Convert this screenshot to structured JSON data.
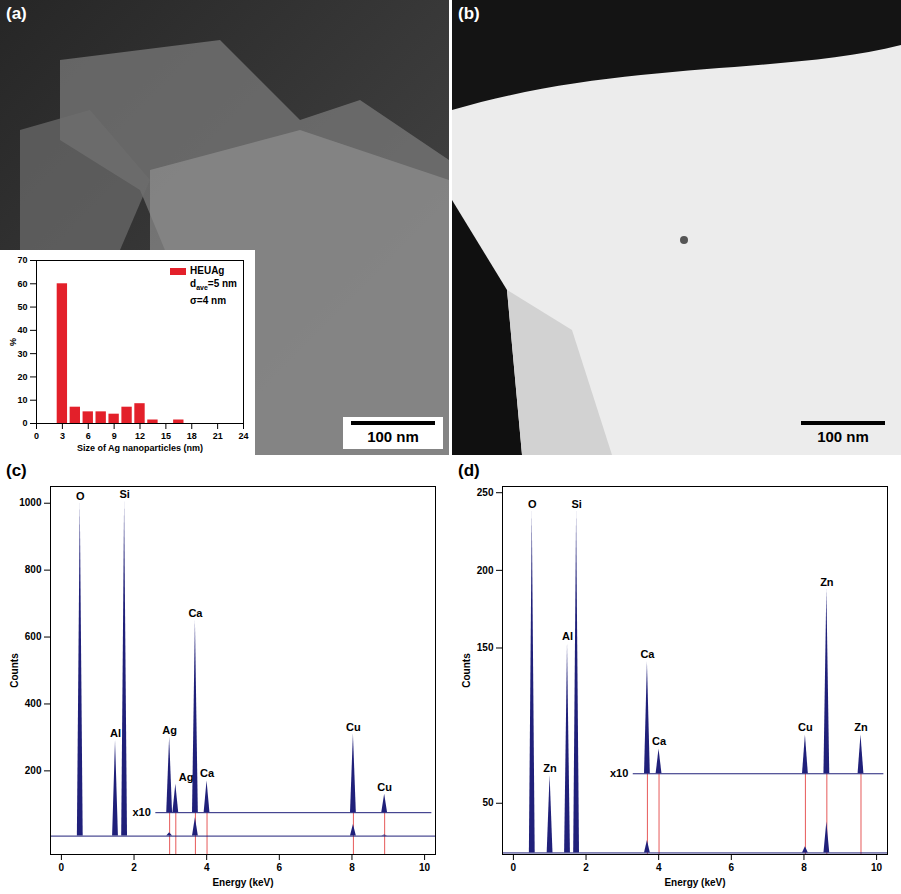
{
  "images": [
    {
      "panel": "(a)",
      "scale_bar": "100 nm"
    },
    {
      "panel": "(b)",
      "scale_bar": "100 nm"
    }
  ],
  "chart_data": [
    {
      "panel": "(a)",
      "type": "bar",
      "x": [
        3,
        4.5,
        6,
        7.5,
        9,
        10.5,
        12,
        13.5,
        16.5
      ],
      "series": [
        {
          "name": "HEUAg",
          "color": "#e3202a",
          "values": [
            60,
            7,
            5,
            5,
            4,
            7,
            8.5,
            1.5,
            1.5
          ]
        }
      ],
      "annotations": [
        {
          "text": "d",
          "sub": "ave",
          "after": "=5 nm"
        },
        {
          "text": "σ=4 nm"
        }
      ],
      "x_label": "Size of Ag nanoparticles (nm)",
      "y_label": "%",
      "xlim": [
        0,
        24
      ],
      "xticks": [
        0,
        3,
        6,
        9,
        12,
        15,
        18,
        21,
        24
      ],
      "ylim": [
        0,
        70
      ],
      "yticks": [
        0,
        10,
        20,
        30,
        40,
        50,
        60,
        70
      ],
      "legend": "top-right"
    },
    {
      "panel": "(c)",
      "type": "area",
      "color": "#20207a",
      "x_label": "Energy (keV)",
      "y_label": "Counts",
      "xlim": [
        -0.3,
        10.3
      ],
      "xticks": [
        0,
        2,
        4,
        6,
        8,
        10
      ],
      "ylim": [
        -50,
        1050
      ],
      "yticks": [
        200,
        400,
        600,
        800,
        1000
      ],
      "peaks": {
        "baseline": 5,
        "energies": [
          0.52,
          1.49,
          1.74,
          2.98,
          3.69,
          8.04,
          8.9
        ],
        "values": [
          1000,
          290,
          1005,
          15,
          60,
          40,
          8
        ],
        "labels": [
          "O",
          "Al",
          "Si",
          null,
          null,
          null,
          null
        ]
      },
      "inset": {
        "label": "x10",
        "xrange": [
          2.6,
          10.2
        ],
        "baseline": 75,
        "energies": [
          2.98,
          3.15,
          3.69,
          4.01,
          8.04,
          8.9
        ],
        "values": [
          300,
          160,
          650,
          170,
          310,
          130
        ],
        "labels": [
          "Ag",
          "Ag",
          "Ca",
          "Ca",
          "Cu",
          "Cu"
        ]
      }
    },
    {
      "panel": "(d)",
      "type": "area",
      "color": "#20207a",
      "x_label": "Energy (keV)",
      "y_label": "Counts",
      "xlim": [
        -0.3,
        10.3
      ],
      "xticks": [
        0,
        2,
        4,
        6,
        8,
        10
      ],
      "ylim": [
        17,
        254
      ],
      "yticks": [
        50,
        150,
        200,
        250
      ],
      "peaks": {
        "baseline": 18,
        "energies": [
          0.52,
          1.01,
          1.49,
          1.74,
          3.69,
          8.04,
          8.63
        ],
        "values": [
          238,
          68,
          153,
          238,
          26,
          22,
          38
        ],
        "labels": [
          "O",
          "Zn",
          "Al",
          "Si",
          null,
          null,
          null
        ]
      },
      "inset": {
        "label": "x10",
        "xrange": [
          3.3,
          10.2
        ],
        "baseline": 69,
        "energies": [
          3.69,
          4.01,
          8.04,
          8.63,
          9.57
        ],
        "values": [
          141,
          85,
          94,
          188,
          94
        ],
        "labels": [
          "Ca",
          "Ca",
          "Cu",
          "Zn",
          "Zn"
        ]
      }
    }
  ]
}
